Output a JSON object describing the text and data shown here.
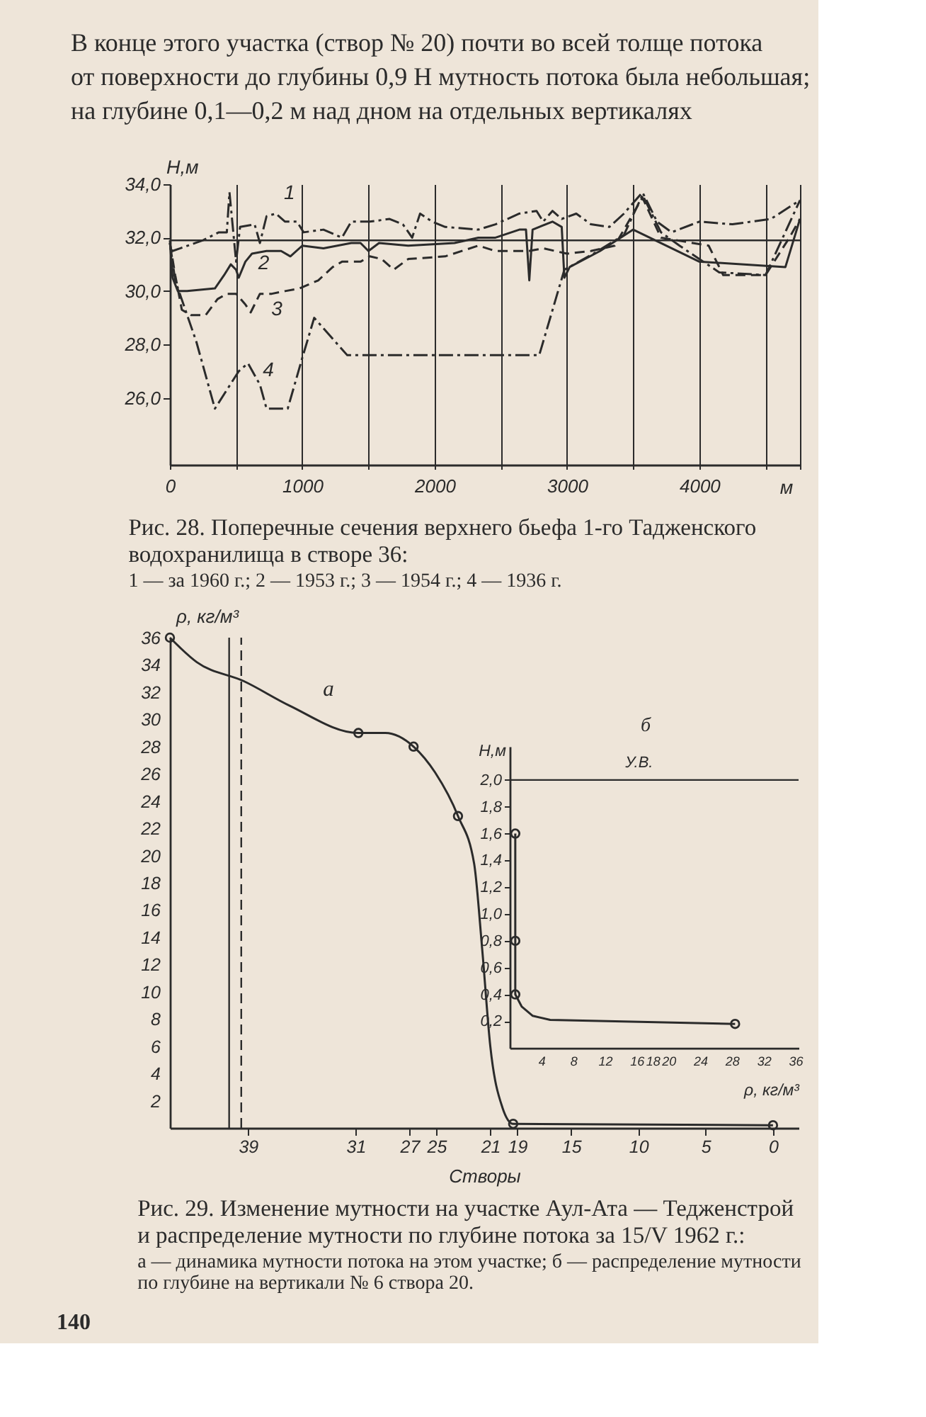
{
  "chart_data": [
    {
      "type": "line",
      "title": "Рис. 28. Поперечные сечения верхнего бьефа 1-го Тадженского водохранилища в створе 36:",
      "subtitle": "1 — за 1960 г.; 2 — 1953 г.; 3 — 1954 г.; 4 — 1936 г.",
      "xlabel": "м",
      "ylabel": "H,м",
      "annotations": [
        "В конце этого участка (створ № 20) почти во всей толще потока от поверхности до глубины 0,9 H мутность потока была небольшая; на глубине 0,1—0,2 м над дном на отдельных вертикалях"
      ],
      "xlim": [
        0,
        4760
      ],
      "ylim": [
        23.5,
        34.0
      ],
      "xticks": [
        0,
        {
          "value": 500,
          "label": null
        },
        1000,
        {
          "value": 1500,
          "label": null
        },
        2000,
        {
          "value": 2500,
          "label": null
        },
        3000,
        {
          "value": 3500,
          "label": null
        },
        4000,
        {
          "value": 4500,
          "label": null
        },
        {
          "value": 4760,
          "label": null
        }
      ],
      "yticks": [
        {
          "value": 26,
          "label": "26,0"
        },
        {
          "value": 28,
          "label": "28,0"
        },
        {
          "value": 30,
          "label": "30,0"
        },
        {
          "value": 32,
          "label": "32,0"
        },
        {
          "value": 34,
          "label": "34,0"
        }
      ],
      "grid": "x",
      "ref_lines": [
        {
          "axis": "y",
          "value": 31.9
        }
      ],
      "series": [
        {
          "name": "1",
          "color": "#2b2b2b",
          "line_style": "dashdot",
          "x": [
            0,
            20,
            250,
            370,
            430,
            450,
            500,
            530,
            640,
            680,
            730,
            800,
            870,
            960,
            1010,
            1160,
            1300,
            1370,
            1510,
            1660,
            1760,
            1830,
            1890,
            1980,
            2080,
            2330,
            2460,
            2640,
            2770,
            2820,
            2890,
            2960,
            3070,
            3180,
            3320,
            3430,
            3570,
            3680,
            3790,
            4000,
            4250,
            4540,
            4760
          ],
          "values": [
            31.6,
            31.5,
            31.9,
            32.2,
            32.2,
            33.7,
            31.1,
            32.4,
            32.5,
            31.8,
            32.8,
            32.9,
            32.6,
            32.6,
            32.2,
            32.3,
            32.0,
            32.6,
            32.6,
            32.7,
            32.5,
            32.0,
            32.9,
            32.6,
            32.4,
            32.3,
            32.5,
            32.9,
            33.0,
            32.6,
            33.0,
            32.7,
            32.9,
            32.5,
            32.4,
            32.9,
            33.7,
            32.6,
            32.2,
            32.6,
            32.5,
            32.7,
            33.4
          ]
        },
        {
          "name": "2",
          "color": "#2b2b2b",
          "line_style": "solid",
          "x": [
            0,
            20,
            60,
            130,
            340,
            410,
            460,
            500,
            520,
            570,
            620,
            730,
            840,
            910,
            1000,
            1160,
            1370,
            1440,
            1500,
            1580,
            1800,
            2150,
            2330,
            2460,
            2640,
            2690,
            2715,
            2740,
            2890,
            2960,
            2980,
            3020,
            3250,
            3500,
            4000,
            4650,
            4760
          ],
          "values": [
            31.9,
            30.5,
            30.0,
            30.0,
            30.1,
            30.6,
            31.0,
            30.8,
            30.5,
            31.1,
            31.4,
            31.5,
            31.5,
            31.3,
            31.7,
            31.6,
            31.8,
            31.8,
            31.5,
            31.8,
            31.7,
            31.8,
            32.0,
            32.0,
            32.3,
            32.3,
            30.4,
            32.3,
            32.6,
            32.4,
            30.5,
            30.9,
            31.5,
            32.3,
            31.1,
            30.9,
            32.7
          ]
        },
        {
          "name": "3",
          "color": "#2b2b2b",
          "line_style": "dashed",
          "x": [
            0,
            40,
            90,
            160,
            270,
            360,
            430,
            500,
            570,
            610,
            680,
            770,
            870,
            980,
            1120,
            1230,
            1300,
            1440,
            1510,
            1600,
            1690,
            1800,
            2080,
            2330,
            2460,
            2710,
            2820,
            3000,
            3180,
            3360,
            3570,
            3710,
            4070,
            4180,
            4500,
            4680,
            4760
          ],
          "values": [
            31.8,
            30.6,
            29.3,
            29.1,
            29.1,
            29.7,
            29.9,
            29.9,
            29.5,
            29.2,
            29.9,
            29.9,
            30.0,
            30.1,
            30.4,
            30.9,
            31.1,
            31.1,
            31.3,
            31.2,
            30.8,
            31.2,
            31.3,
            31.7,
            31.5,
            31.5,
            31.6,
            31.4,
            31.5,
            31.7,
            33.5,
            32.0,
            31.7,
            30.6,
            30.6,
            32.0,
            32.7
          ]
        },
        {
          "name": "4",
          "color": "#2b2b2b",
          "line_style": "dashdot",
          "x": [
            0,
            40,
            200,
            340,
            520,
            590,
            680,
            730,
            890,
            1000,
            1090,
            1340,
            2790,
            2980,
            3200,
            3430,
            3570,
            3710,
            3850,
            4150,
            4500,
            4760
          ],
          "values": [
            31.8,
            30.4,
            28.1,
            25.6,
            27.0,
            27.3,
            26.5,
            25.6,
            25.6,
            27.5,
            29.0,
            27.6,
            27.6,
            30.8,
            31.4,
            32.1,
            33.6,
            32.2,
            31.7,
            30.7,
            30.6,
            33.4
          ]
        }
      ]
    },
    {
      "type": "line",
      "title": "Рис. 29. Изменение мутности на участке Аул-Ата — Тедженстрой и распределение мутности по глубине потока за 15/V 1962 г.:",
      "subtitle": "а — динамика мутности потока на этом участке; б — распределение мутности по глубине на вертикали № 6 створа 20.",
      "xlabel": "Створы",
      "ylabel": "ρ, кг/м³",
      "annotations": [
        "а",
        "140"
      ],
      "xlim": [
        44.8,
        -1.9
      ],
      "ylim": [
        0,
        36
      ],
      "xticks": [
        39,
        31,
        27,
        25,
        21,
        19,
        15,
        10,
        5,
        0
      ],
      "yticks": [
        2,
        4,
        6,
        8,
        10,
        12,
        14,
        16,
        18,
        20,
        22,
        24,
        26,
        28,
        30,
        32,
        34,
        36
      ],
      "ref_lines": [
        {
          "axis": "x",
          "value": 40.4,
          "line_style": "solid"
        },
        {
          "axis": "x",
          "value": 39.5,
          "line_style": "dashed"
        }
      ],
      "series": [
        {
          "color": "#2b2b2b",
          "line_style": "solid",
          "x": [
            44.8,
            42.8,
            39.3,
            35.9,
            30.8,
            28.8,
            26.7,
            25.1,
            23.4,
            22.2,
            21.6,
            21.0,
            20.1,
            19.3,
            0
          ],
          "values": [
            36,
            34.2,
            32.8,
            31.0,
            29.0,
            29.0,
            28.0,
            26.1,
            22.9,
            19.4,
            13.1,
            6.0,
            1.5,
            0.3,
            0.2
          ]
        },
        {
          "type": "scatter",
          "marker": "circle",
          "color": "#2b2b2b",
          "x": [
            44.8,
            30.8,
            26.7,
            23.4,
            19.3,
            0
          ],
          "values": [
            36,
            29.0,
            28.0,
            22.9,
            0.3,
            0.2
          ]
        }
      ]
    },
    {
      "type": "line",
      "xlabel": "ρ, кг/м³",
      "ylabel": "H,м",
      "annotations": [
        "б"
      ],
      "xlim": [
        0,
        36.4
      ],
      "ylim": [
        0,
        2.25
      ],
      "xticks": [
        4,
        8,
        12,
        16,
        18,
        20,
        24,
        28,
        32,
        36
      ],
      "yticks": [
        {
          "value": 0.2,
          "label": "0,2"
        },
        {
          "value": 0.4,
          "label": "0,4"
        },
        {
          "value": 0.6,
          "label": "0,6"
        },
        {
          "value": 0.8,
          "label": "0,8"
        },
        {
          "value": 1.0,
          "label": "1,0"
        },
        {
          "value": 1.2,
          "label": "1,2"
        },
        {
          "value": 1.4,
          "label": "1,4"
        },
        {
          "value": 1.6,
          "label": "1,6"
        },
        {
          "value": 1.8,
          "label": "1,8"
        },
        {
          "value": 2.0,
          "label": "2,0"
        }
      ],
      "ref_lines": [
        {
          "axis": "y",
          "value": 2.0,
          "label": "У.В."
        }
      ],
      "series": [
        {
          "color": "#2b2b2b",
          "line_style": "solid",
          "x": [
            0.7,
            0.7,
            0.7,
            1.5,
            2.9,
            5.1,
            28.4
          ],
          "values": [
            1.6,
            0.8,
            0.4,
            0.31,
            0.24,
            0.21,
            0.18
          ]
        },
        {
          "type": "scatter",
          "marker": "circle",
          "color": "#2b2b2b",
          "x": [
            0.7,
            0.7,
            0.7,
            28.4
          ],
          "values": [
            1.6,
            0.8,
            0.4,
            0.18
          ]
        }
      ]
    }
  ]
}
